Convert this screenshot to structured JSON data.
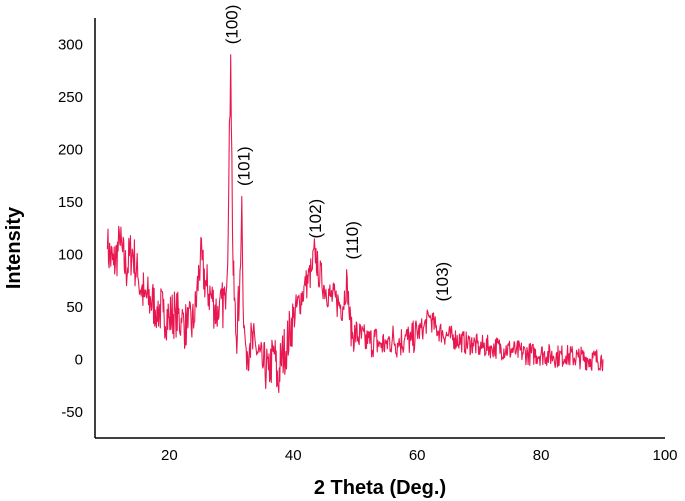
{
  "chart_data": {
    "type": "line",
    "title": "",
    "xlabel": "2 Theta (Deg.)",
    "ylabel": "Intensity",
    "xlim": [
      8,
      100
    ],
    "ylim": [
      -75,
      325
    ],
    "xticks": [
      20,
      40,
      60,
      80,
      100
    ],
    "yticks": [
      -50,
      0,
      50,
      100,
      150,
      200,
      250,
      300
    ],
    "grid": false,
    "legend": "none",
    "line_color": "#e8174f",
    "series": [
      {
        "x": [
          10,
          11,
          12,
          13,
          14,
          15,
          16,
          17,
          18,
          19,
          20,
          21,
          22,
          23,
          24,
          25,
          26,
          27,
          28,
          29,
          29.5,
          29.9,
          30.3,
          30.8,
          31.3,
          31.7,
          32,
          32.4,
          33,
          34,
          35,
          36,
          37,
          37.5,
          38,
          39,
          40,
          41,
          42,
          43,
          43.5,
          44,
          45,
          46,
          47,
          48,
          48.7,
          49,
          49.5,
          50,
          51,
          52,
          53,
          54,
          55,
          56,
          57,
          58,
          59,
          60,
          61,
          62,
          63,
          64,
          65,
          66,
          67,
          68,
          69,
          70,
          72,
          74,
          76,
          78,
          80,
          82,
          84,
          86,
          88,
          90
        ],
        "y": [
          105,
          90,
          110,
          85,
          105,
          75,
          60,
          55,
          50,
          45,
          40,
          45,
          35,
          30,
          35,
          95,
          70,
          55,
          40,
          60,
          120,
          290,
          80,
          20,
          60,
          155,
          30,
          10,
          15,
          10,
          -5,
          -10,
          5,
          -25,
          0,
          15,
          40,
          55,
          70,
          85,
          105,
          85,
          70,
          60,
          55,
          50,
          78,
          45,
          20,
          25,
          20,
          15,
          18,
          15,
          15,
          20,
          15,
          20,
          18,
          25,
          30,
          40,
          30,
          25,
          22,
          20,
          18,
          15,
          15,
          12,
          12,
          10,
          8,
          5,
          5,
          3,
          3,
          2,
          0,
          0
        ]
      }
    ],
    "annotations": [
      {
        "text": "(100)",
        "x": 30.0,
        "y": 300
      },
      {
        "text": "(101)",
        "x": 32.0,
        "y": 165
      },
      {
        "text": "(102)",
        "x": 43.5,
        "y": 115
      },
      {
        "text": "(110)",
        "x": 49.5,
        "y": 95
      },
      {
        "text": "(103)",
        "x": 64.0,
        "y": 55
      }
    ]
  }
}
